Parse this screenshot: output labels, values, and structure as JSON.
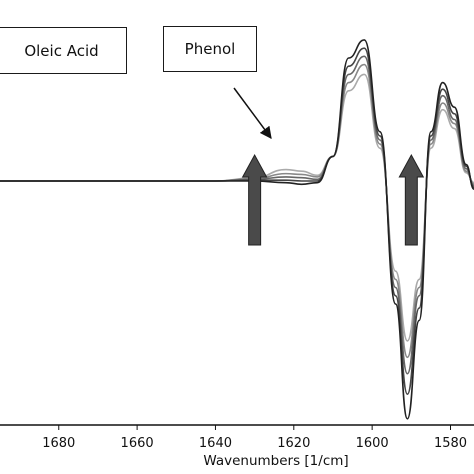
{
  "chart_data": {
    "type": "line",
    "title": "",
    "xlabel": "Wavenumbers [1/cm]",
    "ylabel": "",
    "xlim": [
      1695,
      1574
    ],
    "x_reversed": true,
    "grid": false,
    "legend": "none",
    "x_ticks": [
      1680,
      1660,
      1640,
      1620,
      1600,
      1580
    ],
    "annotations": {
      "oleic_acid": "Oleic Acid",
      "phenol": "Phenol"
    },
    "arrow_markers": [
      {
        "x": 1630,
        "direction": "up",
        "meaning": "increasing"
      },
      {
        "x": 1590,
        "direction": "up",
        "meaning": "increasing"
      }
    ],
    "series": [
      {
        "color": "#222222",
        "x": [
          1695,
          1680,
          1660,
          1640,
          1630,
          1622,
          1618,
          1614,
          1610,
          1606,
          1602,
          1598,
          1594,
          1591,
          1588,
          1585,
          1582,
          1579,
          1576,
          1574
        ],
        "y": [
          0,
          0,
          0,
          0,
          0,
          -0.02,
          -0.04,
          -0.02,
          0.3,
          1.5,
          1.72,
          0.6,
          -1.5,
          -2.9,
          -1.7,
          0.6,
          1.2,
          0.9,
          0.2,
          -0.1
        ]
      },
      {
        "color": "#444444",
        "x": [
          1695,
          1680,
          1660,
          1640,
          1630,
          1622,
          1618,
          1614,
          1610,
          1606,
          1602,
          1598,
          1594,
          1591,
          1588,
          1585,
          1582,
          1579,
          1576,
          1574
        ],
        "y": [
          0,
          0,
          0,
          0,
          0.01,
          0.01,
          0.0,
          0.0,
          0.3,
          1.4,
          1.62,
          0.55,
          -1.4,
          -2.6,
          -1.55,
          0.55,
          1.12,
          0.82,
          0.18,
          -0.08
        ]
      },
      {
        "color": "#666666",
        "x": [
          1695,
          1680,
          1660,
          1640,
          1630,
          1622,
          1618,
          1614,
          1610,
          1606,
          1602,
          1598,
          1594,
          1591,
          1588,
          1585,
          1582,
          1579,
          1576,
          1574
        ],
        "y": [
          0,
          0,
          0,
          0,
          0.02,
          0.05,
          0.04,
          0.02,
          0.3,
          1.3,
          1.52,
          0.5,
          -1.3,
          -2.35,
          -1.4,
          0.5,
          1.04,
          0.75,
          0.15,
          -0.06
        ]
      },
      {
        "color": "#888888",
        "x": [
          1695,
          1680,
          1660,
          1640,
          1630,
          1622,
          1618,
          1614,
          1610,
          1606,
          1602,
          1598,
          1594,
          1591,
          1588,
          1585,
          1582,
          1579,
          1576,
          1574
        ],
        "y": [
          0,
          0,
          0,
          0,
          0.03,
          0.09,
          0.08,
          0.05,
          0.3,
          1.2,
          1.42,
          0.45,
          -1.2,
          -2.15,
          -1.3,
          0.45,
          0.95,
          0.7,
          0.12,
          -0.04
        ]
      },
      {
        "color": "#aaaaaa",
        "x": [
          1695,
          1680,
          1660,
          1640,
          1630,
          1622,
          1618,
          1614,
          1610,
          1606,
          1602,
          1598,
          1594,
          1591,
          1588,
          1585,
          1582,
          1579,
          1576,
          1574
        ],
        "y": [
          0,
          0,
          0,
          0,
          0.04,
          0.14,
          0.12,
          0.07,
          0.3,
          1.1,
          1.3,
          0.4,
          -1.1,
          -1.95,
          -1.2,
          0.4,
          0.87,
          0.64,
          0.1,
          -0.02
        ]
      }
    ]
  }
}
